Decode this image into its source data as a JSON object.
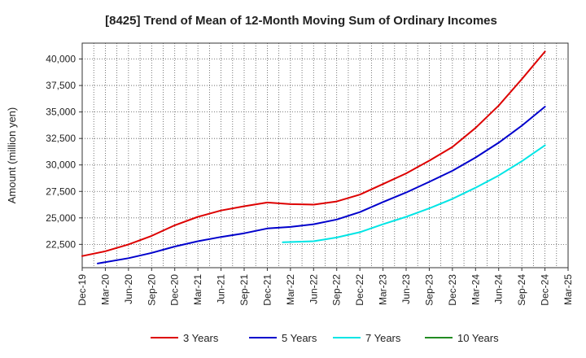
{
  "chart_data": {
    "type": "line",
    "title": "[8425]  Trend of Mean of 12-Month Moving Sum of Ordinary Incomes",
    "xlabel": "",
    "ylabel": "Amount (million yen)",
    "ylim": [
      20300,
      41500
    ],
    "yticks": [
      22500,
      25000,
      27500,
      30000,
      32500,
      35000,
      37500,
      40000
    ],
    "ytick_labels": [
      "22,500",
      "25,000",
      "27,500",
      "30,000",
      "32,500",
      "35,000",
      "37,500",
      "40,000"
    ],
    "x_range_months": [
      0,
      63
    ],
    "x_ticks": [
      {
        "m": 0,
        "label": "Dec-19"
      },
      {
        "m": 3,
        "label": "Mar-20"
      },
      {
        "m": 6,
        "label": "Jun-20"
      },
      {
        "m": 9,
        "label": "Sep-20"
      },
      {
        "m": 12,
        "label": "Dec-20"
      },
      {
        "m": 15,
        "label": "Mar-21"
      },
      {
        "m": 18,
        "label": "Jun-21"
      },
      {
        "m": 21,
        "label": "Sep-21"
      },
      {
        "m": 24,
        "label": "Dec-21"
      },
      {
        "m": 27,
        "label": "Mar-22"
      },
      {
        "m": 30,
        "label": "Jun-22"
      },
      {
        "m": 33,
        "label": "Sep-22"
      },
      {
        "m": 36,
        "label": "Dec-22"
      },
      {
        "m": 39,
        "label": "Mar-23"
      },
      {
        "m": 42,
        "label": "Jun-23"
      },
      {
        "m": 45,
        "label": "Sep-23"
      },
      {
        "m": 48,
        "label": "Dec-23"
      },
      {
        "m": 51,
        "label": "Mar-24"
      },
      {
        "m": 54,
        "label": "Jun-24"
      },
      {
        "m": 57,
        "label": "Sep-24"
      },
      {
        "m": 60,
        "label": "Dec-24"
      },
      {
        "m": 63,
        "label": "Mar-25"
      }
    ],
    "grid": true,
    "legend_position": "bottom",
    "series": [
      {
        "name": "3 Years",
        "color": "#dd0000",
        "points": [
          [
            0,
            21400
          ],
          [
            3,
            21850
          ],
          [
            6,
            22500
          ],
          [
            9,
            23300
          ],
          [
            12,
            24300
          ],
          [
            15,
            25100
          ],
          [
            18,
            25700
          ],
          [
            21,
            26100
          ],
          [
            24,
            26450
          ],
          [
            27,
            26300
          ],
          [
            30,
            26250
          ],
          [
            33,
            26550
          ],
          [
            36,
            27200
          ],
          [
            39,
            28200
          ],
          [
            42,
            29200
          ],
          [
            45,
            30400
          ],
          [
            48,
            31700
          ],
          [
            51,
            33500
          ],
          [
            54,
            35600
          ],
          [
            57,
            38100
          ],
          [
            60,
            40700
          ]
        ]
      },
      {
        "name": "5 Years",
        "color": "#0000cc",
        "points": [
          [
            2,
            20700
          ],
          [
            6,
            21200
          ],
          [
            9,
            21700
          ],
          [
            12,
            22300
          ],
          [
            15,
            22800
          ],
          [
            18,
            23200
          ],
          [
            21,
            23550
          ],
          [
            24,
            24000
          ],
          [
            27,
            24150
          ],
          [
            30,
            24400
          ],
          [
            33,
            24850
          ],
          [
            36,
            25550
          ],
          [
            39,
            26500
          ],
          [
            42,
            27400
          ],
          [
            45,
            28400
          ],
          [
            48,
            29450
          ],
          [
            51,
            30700
          ],
          [
            54,
            32100
          ],
          [
            57,
            33700
          ],
          [
            60,
            35500
          ]
        ]
      },
      {
        "name": "7 Years",
        "color": "#00e5e5",
        "points": [
          [
            26,
            22700
          ],
          [
            30,
            22800
          ],
          [
            33,
            23150
          ],
          [
            36,
            23650
          ],
          [
            39,
            24400
          ],
          [
            42,
            25100
          ],
          [
            45,
            25900
          ],
          [
            48,
            26800
          ],
          [
            51,
            27850
          ],
          [
            54,
            29000
          ],
          [
            57,
            30350
          ],
          [
            60,
            31850
          ]
        ]
      },
      {
        "name": "10 Years",
        "color": "#228B22",
        "points": []
      }
    ]
  }
}
